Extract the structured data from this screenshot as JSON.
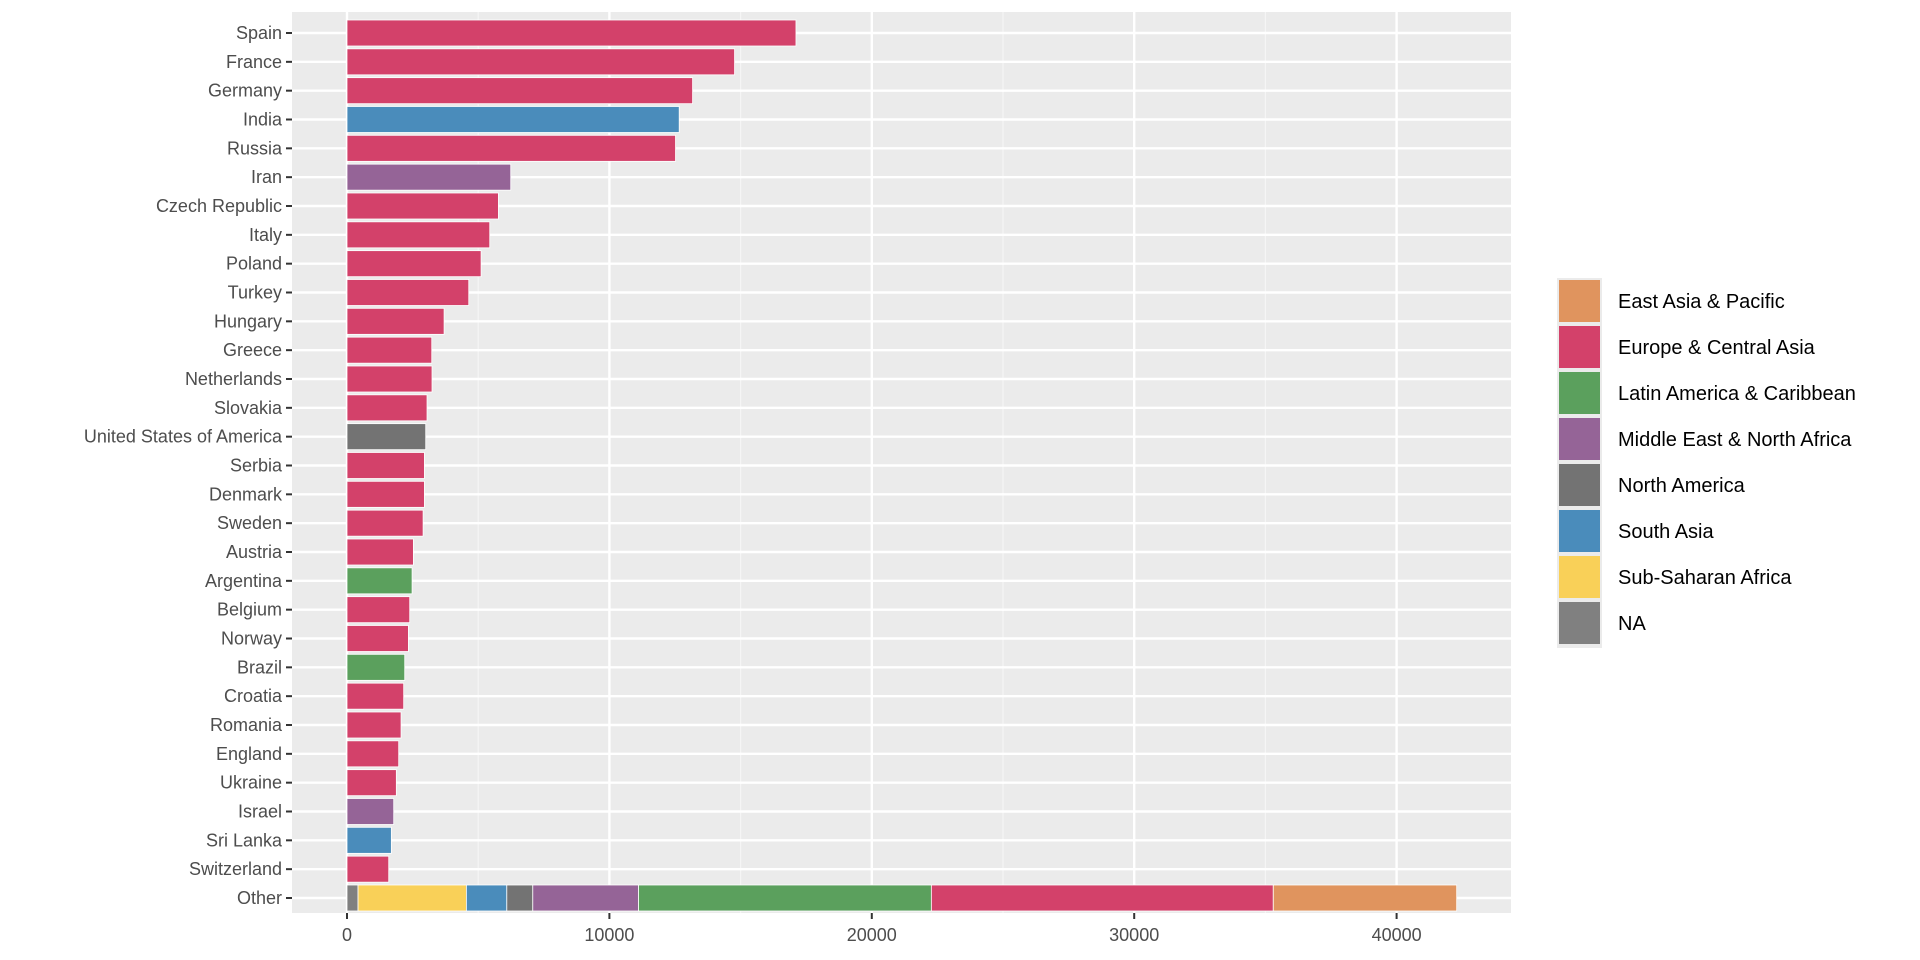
{
  "chart_data": {
    "type": "bar",
    "orientation": "horizontal",
    "stacked": true,
    "title": "",
    "xlabel": "",
    "ylabel": "",
    "xlim": [
      0,
      44000
    ],
    "x_ticks": [
      0,
      10000,
      20000,
      30000,
      40000
    ],
    "x_tick_labels": [
      "0",
      "10000",
      "20000",
      "30000",
      "40000"
    ],
    "grid": true,
    "legend_position": "right",
    "legend": [
      {
        "name": "East Asia & Pacific",
        "color": "#E0945E"
      },
      {
        "name": "Europe & Central Asia",
        "color": "#D3416A"
      },
      {
        "name": "Latin America & Caribbean",
        "color": "#5BA05D"
      },
      {
        "name": "Middle East & North Africa",
        "color": "#956497"
      },
      {
        "name": "North America",
        "color": "#737373"
      },
      {
        "name": "South Asia",
        "color": "#4A8CBB"
      },
      {
        "name": "Sub-Saharan Africa",
        "color": "#F9D058"
      },
      {
        "name": "NA",
        "color": "#808080"
      }
    ],
    "bars": [
      {
        "category": "Spain",
        "segments": [
          {
            "region": "Europe & Central Asia",
            "value": 17110
          }
        ]
      },
      {
        "category": "France",
        "segments": [
          {
            "region": "Europe & Central Asia",
            "value": 14770
          }
        ]
      },
      {
        "category": "Germany",
        "segments": [
          {
            "region": "Europe & Central Asia",
            "value": 13170
          }
        ]
      },
      {
        "category": "India",
        "segments": [
          {
            "region": "South Asia",
            "value": 12660
          }
        ]
      },
      {
        "category": "Russia",
        "segments": [
          {
            "region": "Europe & Central Asia",
            "value": 12520
          }
        ]
      },
      {
        "category": "Iran",
        "segments": [
          {
            "region": "Middle East & North Africa",
            "value": 6240
          }
        ]
      },
      {
        "category": "Czech Republic",
        "segments": [
          {
            "region": "Europe & Central Asia",
            "value": 5770
          }
        ]
      },
      {
        "category": "Italy",
        "segments": [
          {
            "region": "Europe & Central Asia",
            "value": 5440
          }
        ]
      },
      {
        "category": "Poland",
        "segments": [
          {
            "region": "Europe & Central Asia",
            "value": 5110
          }
        ]
      },
      {
        "category": "Turkey",
        "segments": [
          {
            "region": "Europe & Central Asia",
            "value": 4640
          }
        ]
      },
      {
        "category": "Hungary",
        "segments": [
          {
            "region": "Europe & Central Asia",
            "value": 3700
          }
        ]
      },
      {
        "category": "Greece",
        "segments": [
          {
            "region": "Europe & Central Asia",
            "value": 3230
          }
        ]
      },
      {
        "category": "Netherlands",
        "segments": [
          {
            "region": "Europe & Central Asia",
            "value": 3240
          }
        ]
      },
      {
        "category": "Slovakia",
        "segments": [
          {
            "region": "Europe & Central Asia",
            "value": 3050
          }
        ]
      },
      {
        "category": "United States of America",
        "segments": [
          {
            "region": "North America",
            "value": 3000
          }
        ]
      },
      {
        "category": "Serbia",
        "segments": [
          {
            "region": "Europe & Central Asia",
            "value": 2950
          }
        ]
      },
      {
        "category": "Denmark",
        "segments": [
          {
            "region": "Europe & Central Asia",
            "value": 2950
          }
        ]
      },
      {
        "category": "Sweden",
        "segments": [
          {
            "region": "Europe & Central Asia",
            "value": 2900
          }
        ]
      },
      {
        "category": "Austria",
        "segments": [
          {
            "region": "Europe & Central Asia",
            "value": 2530
          }
        ]
      },
      {
        "category": "Argentina",
        "segments": [
          {
            "region": "Latin America & Caribbean",
            "value": 2480
          }
        ]
      },
      {
        "category": "Belgium",
        "segments": [
          {
            "region": "Europe & Central Asia",
            "value": 2390
          }
        ]
      },
      {
        "category": "Norway",
        "segments": [
          {
            "region": "Europe & Central Asia",
            "value": 2340
          }
        ]
      },
      {
        "category": "Brazil",
        "segments": [
          {
            "region": "Latin America & Caribbean",
            "value": 2200
          }
        ]
      },
      {
        "category": "Croatia",
        "segments": [
          {
            "region": "Europe & Central Asia",
            "value": 2160
          }
        ]
      },
      {
        "category": "Romania",
        "segments": [
          {
            "region": "Europe & Central Asia",
            "value": 2060
          }
        ]
      },
      {
        "category": "England",
        "segments": [
          {
            "region": "Europe & Central Asia",
            "value": 1970
          }
        ]
      },
      {
        "category": "Ukraine",
        "segments": [
          {
            "region": "Europe & Central Asia",
            "value": 1880
          }
        ]
      },
      {
        "category": "Israel",
        "segments": [
          {
            "region": "Middle East & North Africa",
            "value": 1780
          }
        ]
      },
      {
        "category": "Sri Lanka",
        "segments": [
          {
            "region": "South Asia",
            "value": 1690
          }
        ]
      },
      {
        "category": "Switzerland",
        "segments": [
          {
            "region": "Europe & Central Asia",
            "value": 1590
          }
        ]
      },
      {
        "category": "Other",
        "segments": [
          {
            "region": "NA",
            "value": 420
          },
          {
            "region": "Sub-Saharan Africa",
            "value": 4130
          },
          {
            "region": "South Asia",
            "value": 1540
          },
          {
            "region": "North America",
            "value": 990
          },
          {
            "region": "Middle East & North Africa",
            "value": 4030
          },
          {
            "region": "Latin America & Caribbean",
            "value": 11160
          },
          {
            "region": "Europe & Central Asia",
            "value": 13030
          },
          {
            "region": "East Asia & Pacific",
            "value": 6990
          }
        ]
      }
    ]
  }
}
